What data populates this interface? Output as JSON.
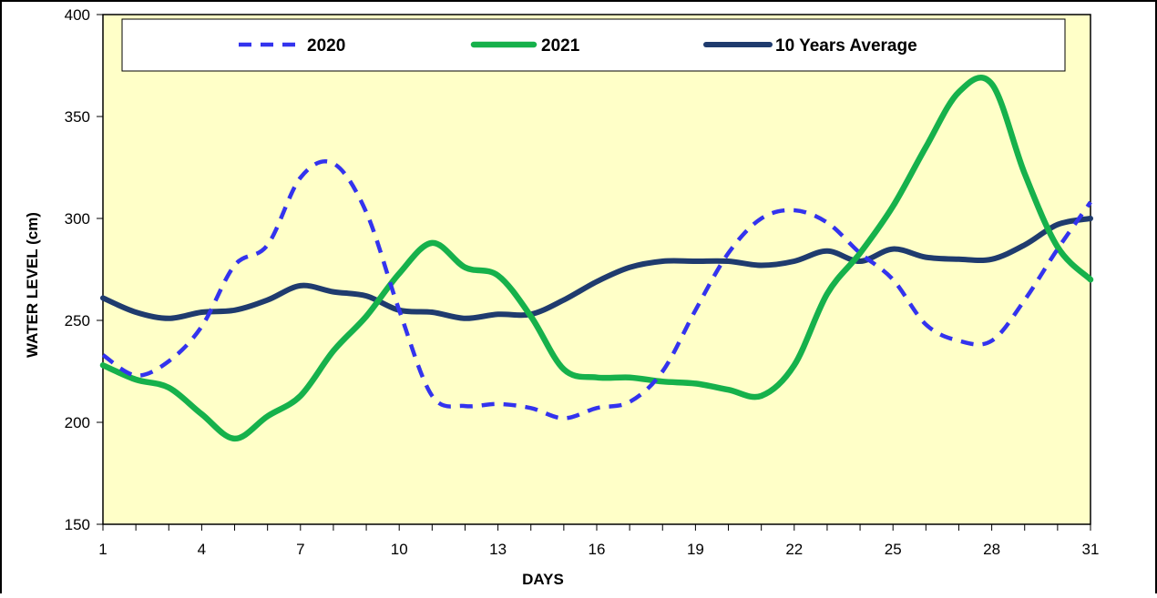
{
  "chart_data": {
    "type": "line",
    "title": "",
    "xlabel": "DAYS",
    "ylabel": "WATER LEVEL (cm)",
    "xlim": [
      1,
      31
    ],
    "ylim": [
      150,
      400
    ],
    "x_ticks": [
      "1",
      "4",
      "7",
      "10",
      "13",
      "16",
      "19",
      "22",
      "25",
      "28",
      "31"
    ],
    "y_ticks": [
      "150",
      "200",
      "250",
      "300",
      "350",
      "400"
    ],
    "x": [
      1,
      2,
      3,
      4,
      5,
      6,
      7,
      8,
      9,
      10,
      11,
      12,
      13,
      14,
      15,
      16,
      17,
      18,
      19,
      20,
      21,
      22,
      23,
      24,
      25,
      26,
      27,
      28,
      29,
      30,
      31
    ],
    "series": [
      {
        "name": "2020",
        "color": "#3333ee",
        "dashed": true,
        "values": [
          233,
          223,
          230,
          247,
          277,
          287,
          320,
          327,
          303,
          255,
          213,
          208,
          209,
          207,
          202,
          207,
          210,
          225,
          255,
          283,
          300,
          304,
          298,
          283,
          270,
          248,
          240,
          240,
          260,
          285,
          308
        ]
      },
      {
        "name": "2021",
        "color": "#16b14b",
        "dashed": false,
        "values": [
          228,
          221,
          217,
          204,
          192,
          203,
          213,
          235,
          252,
          273,
          288,
          276,
          272,
          252,
          226,
          222,
          222,
          220,
          219,
          216,
          213,
          228,
          263,
          283,
          306,
          335,
          362,
          366,
          322,
          286,
          270
        ]
      },
      {
        "name": "10 Years Average",
        "color": "#1f3b6e",
        "dashed": false,
        "values": [
          261,
          254,
          251,
          254,
          255,
          260,
          267,
          264,
          262,
          255,
          254,
          251,
          253,
          253,
          260,
          269,
          276,
          279,
          279,
          279,
          277,
          279,
          284,
          279,
          285,
          281,
          280,
          280,
          287,
          297,
          300
        ]
      }
    ],
    "legend_position": "top",
    "plot_background": "#ffffc8",
    "grid": false
  }
}
